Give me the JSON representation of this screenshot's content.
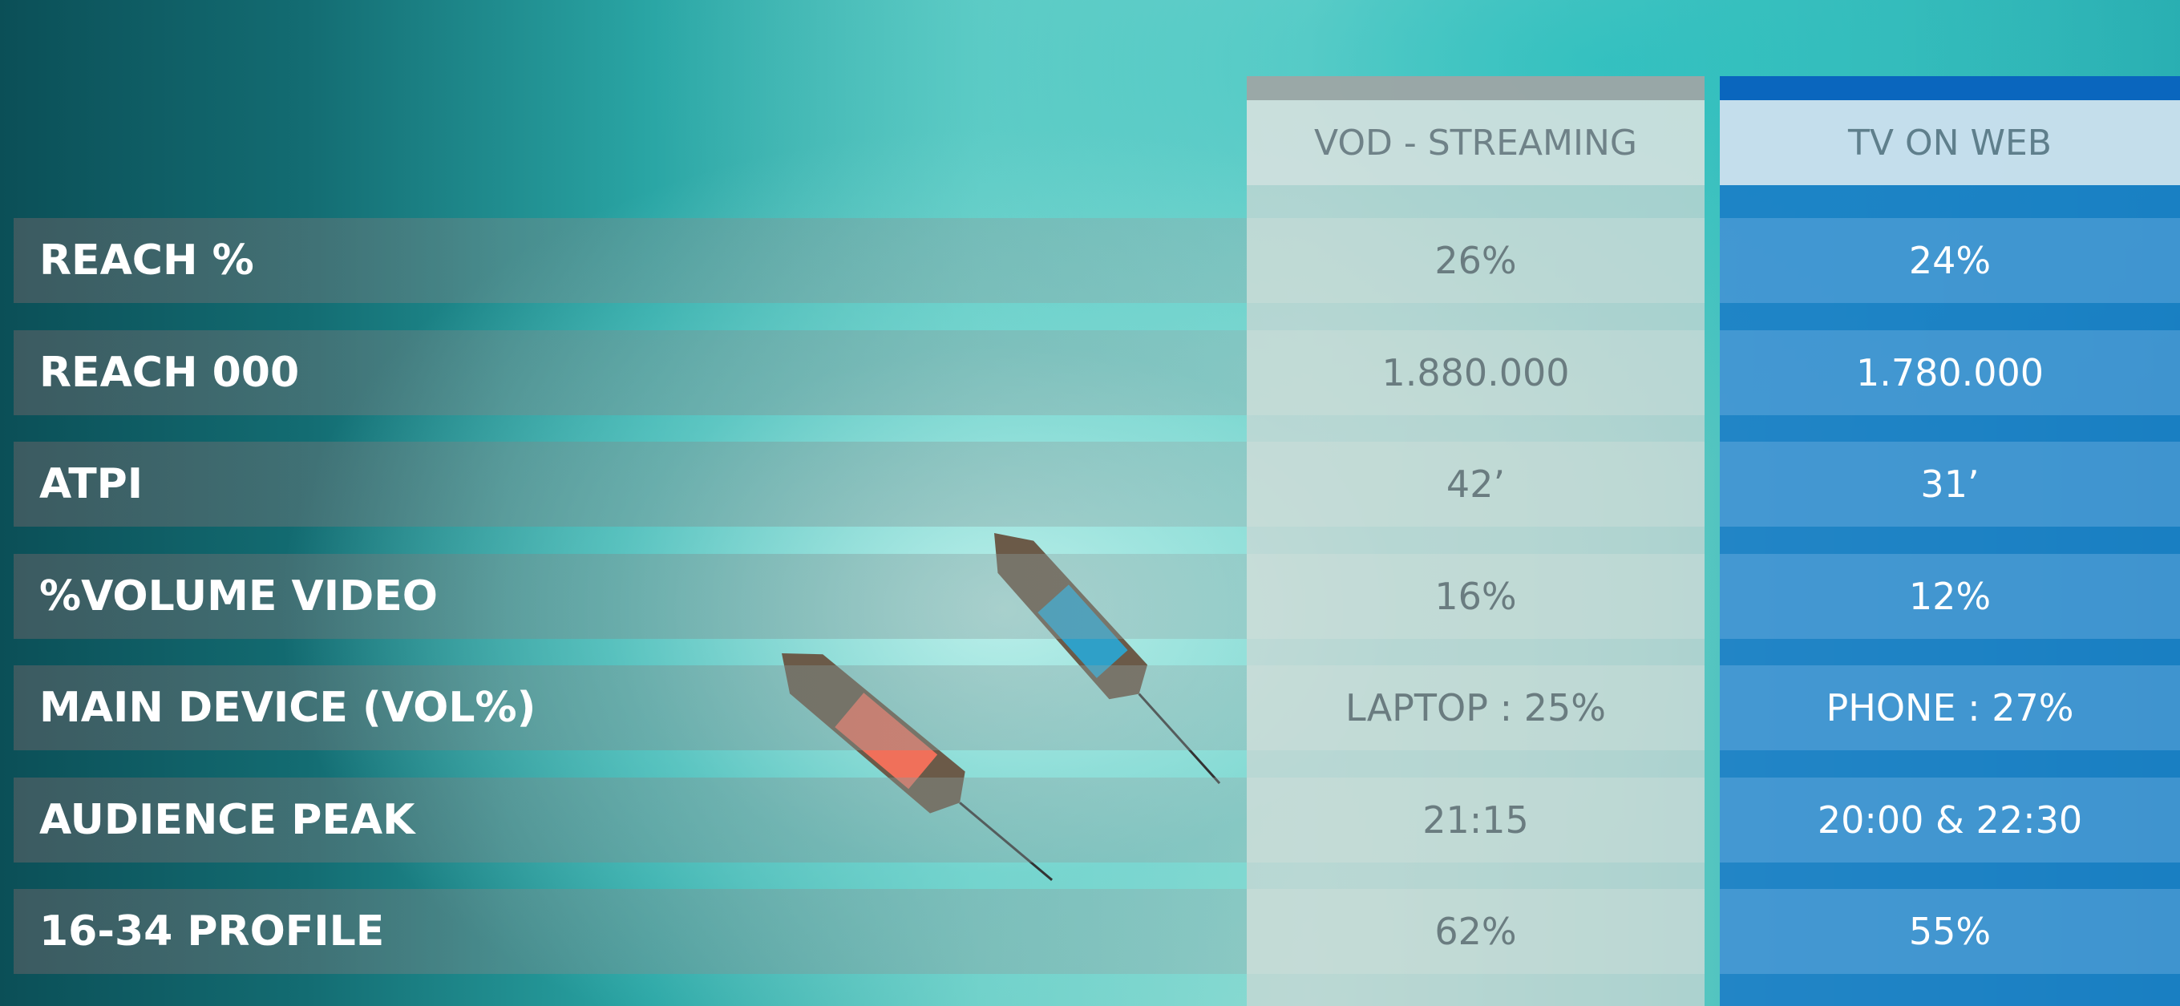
{
  "table": {
    "columns": [
      "VOD - STREAMING",
      "TV ON WEB"
    ],
    "rows": [
      {
        "label": "REACH %",
        "values": [
          "26%",
          "24%"
        ]
      },
      {
        "label": "REACH 000",
        "values": [
          "1.880.000",
          "1.780.000"
        ]
      },
      {
        "label": "ATPI",
        "values": [
          "42’",
          "31’"
        ]
      },
      {
        "label": "%VOLUME VIDEO",
        "values": [
          "16%",
          "12%"
        ]
      },
      {
        "label": "MAIN DEVICE (VOL%)",
        "values": [
          "LAPTOP : 25%",
          "PHONE : 27%"
        ]
      },
      {
        "label": "AUDIENCE PEAK",
        "values": [
          "21:15",
          "20:00 & 22:30"
        ]
      },
      {
        "label": "16-34 PROFILE",
        "values": [
          "62%",
          "55%"
        ]
      }
    ]
  }
}
